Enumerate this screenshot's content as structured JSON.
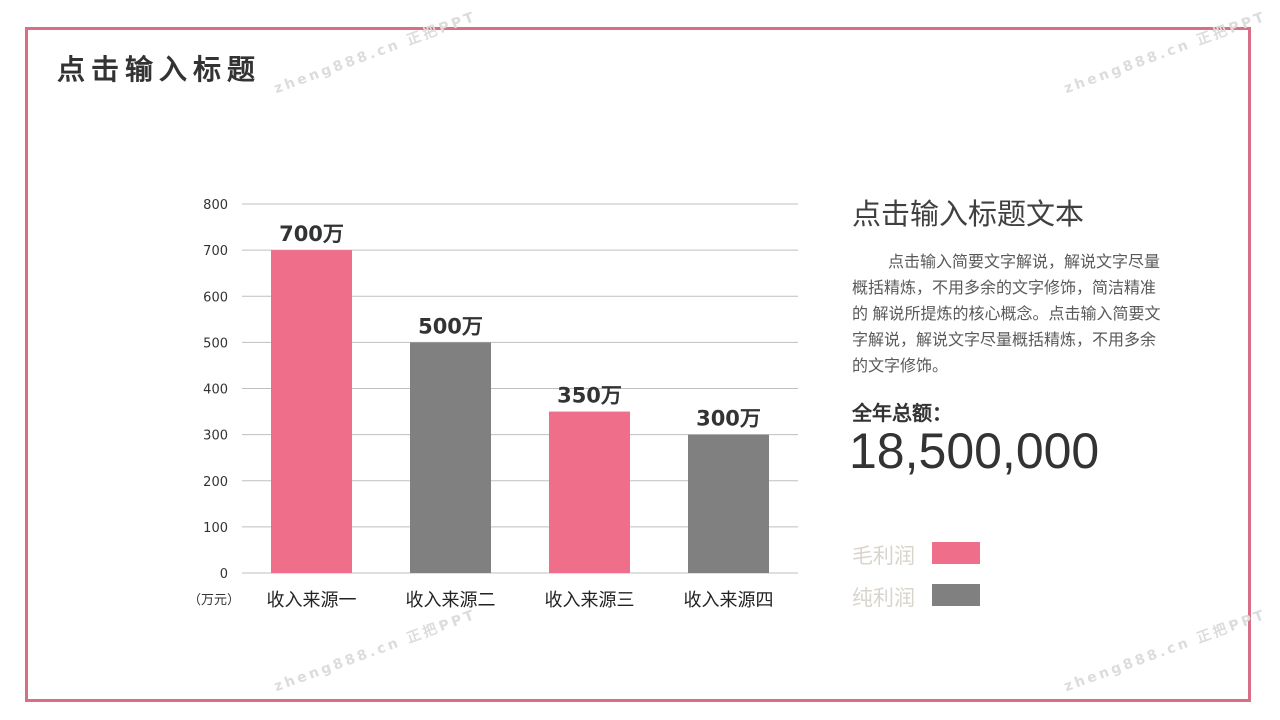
{
  "slide": {
    "title": "点击输入标题",
    "watermark": "zheng888.cn 正把PPT",
    "border_color": "#d86f86"
  },
  "panel": {
    "title": "点击输入标题文本",
    "body": "点击输入简要文字解说，解说文字尽量概括精炼，不用多余的文字修饰，简洁精准的 解说所提炼的核心概念。点击输入简要文字解说，解说文字尽量概括精炼，不用多余的文字修饰。",
    "total_label": "全年总额：",
    "total_value": "18,500,000"
  },
  "legend": [
    {
      "label": "毛利润",
      "color": "#ef6f8a"
    },
    {
      "label": "纯利润",
      "color": "#808080"
    }
  ],
  "chart_data": {
    "type": "bar",
    "categories": [
      "收入来源一",
      "收入来源二",
      "收入来源三",
      "收入来源四"
    ],
    "values": [
      700,
      500,
      350,
      300
    ],
    "data_labels": [
      "700万",
      "500万",
      "350万",
      "300万"
    ],
    "bar_colors": [
      "#ef6f8a",
      "#808080",
      "#ef6f8a",
      "#808080"
    ],
    "ylim": [
      0,
      800
    ],
    "yticks": [
      0,
      100,
      200,
      300,
      400,
      500,
      600,
      700,
      800
    ],
    "unit_label": "（万元）",
    "grid": true,
    "gridline_color": "#bfbfbf"
  }
}
